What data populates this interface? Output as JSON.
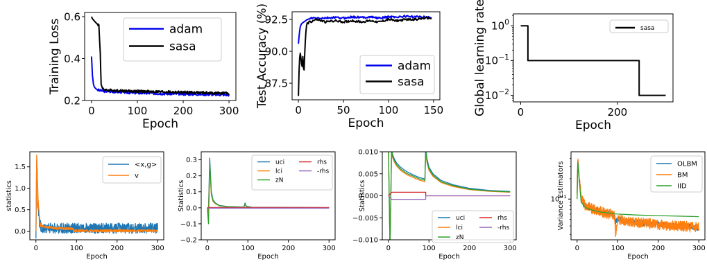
{
  "chart_data": [
    {
      "type": "line",
      "xlabel": "Epoch",
      "ylabel": "Training Loss",
      "xlim": [
        -15,
        315
      ],
      "ylim": [
        0.2,
        0.62
      ],
      "xticks": [
        0,
        100,
        200,
        300
      ],
      "yticks": [
        0.2,
        0.4,
        0.6
      ],
      "ytick_labels": [
        "0.2",
        "0.4",
        "0.6"
      ],
      "legend": "top-right",
      "series": [
        {
          "name": "adam",
          "color": "#0000ee",
          "x": [
            0,
            2,
            4,
            6,
            8,
            10,
            14,
            18,
            22,
            30,
            40,
            60,
            80,
            100,
            120,
            140,
            160,
            180,
            200,
            220,
            240,
            260,
            280,
            300
          ],
          "values": [
            0.41,
            0.32,
            0.28,
            0.265,
            0.26,
            0.255,
            0.25,
            0.248,
            0.246,
            0.244,
            0.243,
            0.241,
            0.238,
            0.236,
            0.235,
            0.234,
            0.233,
            0.232,
            0.231,
            0.23,
            0.23,
            0.229,
            0.228,
            0.227
          ]
        },
        {
          "name": "sasa",
          "color": "#000000",
          "x": [
            0,
            2,
            4,
            6,
            8,
            10,
            13,
            16,
            19,
            21,
            24,
            28,
            34,
            40,
            60,
            80,
            100,
            120,
            140,
            160,
            180,
            200,
            220,
            240,
            260,
            280,
            300
          ],
          "values": [
            0.6,
            0.59,
            0.585,
            0.58,
            0.575,
            0.57,
            0.565,
            0.56,
            0.43,
            0.28,
            0.255,
            0.252,
            0.25,
            0.249,
            0.247,
            0.245,
            0.244,
            0.243,
            0.242,
            0.241,
            0.24,
            0.239,
            0.238,
            0.237,
            0.236,
            0.235,
            0.234
          ]
        }
      ]
    },
    {
      "type": "line",
      "xlabel": "Epoch",
      "ylabel": "Test Accuracy (%)",
      "xlim": [
        -7,
        157
      ],
      "ylim": [
        86.2,
        93.1
      ],
      "xticks": [
        0,
        50,
        100,
        150
      ],
      "yticks": [
        87.5,
        90.0,
        92.5
      ],
      "ytick_labels": [
        "87.5",
        "90.0",
        "92.5"
      ],
      "legend": "bottom-right",
      "series": [
        {
          "name": "adam",
          "color": "#0000ee",
          "x": [
            0,
            1,
            2,
            3,
            4,
            6,
            8,
            10,
            15,
            20,
            30,
            40,
            50,
            60,
            70,
            80,
            90,
            100,
            110,
            120,
            130,
            140,
            148
          ],
          "values": [
            90.6,
            91.4,
            91.9,
            92.1,
            92.2,
            92.3,
            92.4,
            92.5,
            92.6,
            92.6,
            92.6,
            92.65,
            92.6,
            92.7,
            92.65,
            92.7,
            92.6,
            92.7,
            92.7,
            92.75,
            92.7,
            92.7,
            92.65
          ]
        },
        {
          "name": "sasa",
          "color": "#000000",
          "x": [
            0,
            1,
            2,
            3,
            4,
            5,
            6,
            7,
            8,
            9,
            10,
            11,
            12,
            14,
            16,
            20,
            30,
            40,
            50,
            60,
            70,
            80,
            90,
            100,
            110,
            120,
            130,
            140,
            148
          ],
          "values": [
            86.5,
            89.2,
            89.9,
            89.4,
            88.6,
            89.7,
            88.0,
            89.8,
            91.3,
            92.0,
            92.3,
            92.1,
            92.4,
            92.3,
            92.4,
            92.5,
            92.3,
            92.4,
            92.3,
            92.4,
            92.3,
            92.4,
            92.3,
            92.5,
            92.4,
            92.5,
            92.5,
            92.6,
            92.6
          ]
        }
      ]
    },
    {
      "type": "line",
      "xlabel": "Epoch",
      "ylabel": "Global learning rate",
      "yscale": "log",
      "xlim": [
        -15,
        315
      ],
      "ylim": [
        0.0065,
        2.2
      ],
      "xticks": [
        0,
        200
      ],
      "yticks": [
        1,
        0.1,
        0.01
      ],
      "ytick_labels": [
        "10^0",
        "10^-1",
        "10^-2"
      ],
      "legend": "top-right",
      "series": [
        {
          "name": "sasa",
          "color": "#000000",
          "x": [
            0,
            15,
            15,
            245,
            245,
            300
          ],
          "values": [
            1,
            1,
            0.1,
            0.1,
            0.01,
            0.01
          ]
        }
      ]
    },
    {
      "type": "line",
      "xlabel": "Epoch",
      "ylabel": "statistics",
      "xlim": [
        -15,
        315
      ],
      "ylim": [
        -0.2,
        1.85
      ],
      "xticks": [
        0,
        100,
        200,
        300
      ],
      "yticks": [
        0.0,
        0.5,
        1.0,
        1.5
      ],
      "ytick_labels": [
        "0.0",
        "0.5",
        "1.0",
        "1.5"
      ],
      "legend": "top-right",
      "series": [
        {
          "name": "<x,g>",
          "color": "#1f77b4",
          "x": [
            0,
            2,
            5,
            10,
            20,
            40,
            60,
            80,
            100,
            120,
            150,
            200,
            250,
            300
          ],
          "values": [
            -0.15,
            1.75,
            0.6,
            0.1,
            0.08,
            0.07,
            0.07,
            0.07,
            0.07,
            0.07,
            0.07,
            0.07,
            0.07,
            0.07
          ],
          "noise": 0.12
        },
        {
          "name": "v",
          "color": "#ff7f0e",
          "x": [
            0,
            2,
            5,
            10,
            20,
            40,
            60,
            80,
            92,
            95,
            100,
            150,
            200,
            250,
            300
          ],
          "values": [
            0.0,
            1.8,
            0.8,
            0.15,
            0.1,
            0.08,
            0.07,
            0.06,
            0.05,
            0.01,
            0.01,
            0.01,
            0.01,
            0.01,
            0.01
          ],
          "noise": 0.03
        }
      ]
    },
    {
      "type": "line",
      "xlabel": "Epoch",
      "ylabel": "Statistics",
      "xlim": [
        -15,
        315
      ],
      "ylim": [
        -0.2,
        0.35
      ],
      "xticks": [
        0,
        100,
        200,
        300
      ],
      "yticks": [
        -0.2,
        -0.1,
        0.0,
        0.1,
        0.2,
        0.3
      ],
      "ytick_labels": [
        "−0.2",
        "−0.1",
        "0.0",
        "0.1",
        "0.2",
        "0.3"
      ],
      "legend": "top-right",
      "series": [
        {
          "name": "uci",
          "color": "#1f77b4",
          "x": [
            0,
            3,
            6,
            8,
            10,
            14,
            20,
            30,
            50,
            90,
            93,
            96,
            110,
            300
          ],
          "values": [
            0.0,
            0.0,
            0.31,
            0.2,
            0.1,
            0.05,
            0.03,
            0.015,
            0.008,
            0.005,
            0.03,
            0.01,
            0.003,
            0.001
          ]
        },
        {
          "name": "lci",
          "color": "#ff7f0e",
          "x": [
            0,
            3,
            6,
            8,
            10,
            14,
            20,
            30,
            50,
            90,
            93,
            96,
            110,
            300
          ],
          "values": [
            0.0,
            -0.03,
            0.26,
            0.17,
            0.08,
            0.04,
            0.025,
            0.012,
            0.006,
            0.004,
            0.02,
            0.008,
            0.002,
            0.0
          ]
        },
        {
          "name": "zN",
          "color": "#2ca02c",
          "x": [
            0,
            3,
            6,
            8,
            10,
            14,
            20,
            30,
            50,
            90,
            93,
            96,
            110,
            300
          ],
          "values": [
            0.0,
            -0.1,
            0.28,
            0.18,
            0.09,
            0.045,
            0.028,
            0.013,
            0.007,
            0.004,
            0.025,
            0.009,
            0.0025,
            0.0005
          ]
        },
        {
          "name": "rhs",
          "color": "#d62728",
          "x": [
            0,
            300
          ],
          "values": [
            0.002,
            0.002
          ]
        },
        {
          "name": "-rhs",
          "color": "#9467bd",
          "x": [
            0,
            300
          ],
          "values": [
            -0.002,
            -0.002
          ]
        }
      ]
    },
    {
      "type": "line",
      "xlabel": "Epoch",
      "ylabel": "Statistics",
      "xlim": [
        -15,
        315
      ],
      "ylim": [
        -0.01,
        0.01
      ],
      "xticks": [
        0,
        100,
        200,
        300
      ],
      "yticks": [
        -0.01,
        -0.005,
        0.0,
        0.005,
        0.01
      ],
      "ytick_labels": [
        "−0.010",
        "−0.005",
        "0.000",
        "0.005",
        "0.010"
      ],
      "legend": "bottom-right",
      "series": [
        {
          "name": "uci",
          "color": "#1f77b4",
          "x": [
            0,
            4,
            8,
            10,
            14,
            20,
            30,
            45,
            60,
            75,
            90,
            92,
            95,
            100,
            110,
            130,
            160,
            200,
            250,
            300
          ],
          "values": [
            0.012,
            -0.012,
            0.012,
            0.0095,
            0.0085,
            0.0075,
            0.0065,
            0.0055,
            0.0048,
            0.0042,
            0.0038,
            0.011,
            0.0085,
            0.0065,
            0.005,
            0.0035,
            0.0025,
            0.0017,
            0.0012,
            0.001
          ]
        },
        {
          "name": "lci",
          "color": "#ff7f0e",
          "x": [
            0,
            4,
            8,
            10,
            14,
            20,
            30,
            45,
            60,
            75,
            90,
            92,
            95,
            100,
            110,
            130,
            160,
            200,
            250,
            300
          ],
          "values": [
            0.011,
            -0.012,
            0.011,
            0.0088,
            0.0078,
            0.0068,
            0.0058,
            0.0048,
            0.0042,
            0.0036,
            0.0032,
            0.01,
            0.0076,
            0.0058,
            0.0044,
            0.003,
            0.0021,
            0.0014,
            0.001,
            0.0008
          ]
        },
        {
          "name": "zN",
          "color": "#2ca02c",
          "x": [
            0,
            4,
            8,
            10,
            14,
            20,
            30,
            45,
            60,
            75,
            90,
            92,
            95,
            100,
            110,
            130,
            160,
            200,
            250,
            300
          ],
          "values": [
            0.0115,
            -0.012,
            0.0115,
            0.0091,
            0.0081,
            0.0071,
            0.0061,
            0.0051,
            0.0045,
            0.0039,
            0.0035,
            0.0105,
            0.008,
            0.0061,
            0.0047,
            0.0032,
            0.0023,
            0.0015,
            0.0011,
            0.0009
          ]
        },
        {
          "name": "rhs",
          "color": "#d62728",
          "x": [
            0,
            8,
            8,
            92,
            92,
            300
          ],
          "values": [
            0.0,
            0.0008,
            0.0008,
            0.0008,
            0.0,
            0.0
          ]
        },
        {
          "name": "-rhs",
          "color": "#9467bd",
          "x": [
            0,
            8,
            8,
            92,
            92,
            300
          ],
          "values": [
            0.0,
            -0.0008,
            -0.0008,
            -0.0008,
            0.0,
            0.0
          ]
        }
      ]
    },
    {
      "type": "line",
      "xlabel": "Epoch",
      "ylabel": "Variance Estimators",
      "yscale": "log",
      "xlim": [
        -15,
        315
      ],
      "ylim": [
        0.025,
        0.5
      ],
      "xticks": [
        0,
        100,
        200,
        300
      ],
      "yticks": [
        0.1
      ],
      "ytick_labels": [
        "10^-1"
      ],
      "legend": "top-right",
      "series": [
        {
          "name": "OLBM",
          "color": "#1f77b4",
          "x": [
            0,
            2,
            5,
            10,
            20,
            40,
            60,
            80,
            92,
            95,
            100,
            150,
            200,
            250,
            300
          ],
          "values": [
            0.12,
            0.4,
            0.2,
            0.1,
            0.08,
            0.07,
            0.065,
            0.06,
            0.058,
            0.045,
            0.05,
            0.045,
            0.042,
            0.04,
            0.038
          ],
          "noise": 0.1
        },
        {
          "name": "BM",
          "color": "#ff7f0e",
          "x": [
            0,
            2,
            5,
            10,
            20,
            40,
            60,
            80,
            92,
            95,
            100,
            150,
            200,
            250,
            300
          ],
          "values": [
            0.12,
            0.42,
            0.22,
            0.1,
            0.08,
            0.07,
            0.065,
            0.06,
            0.058,
            0.03,
            0.05,
            0.045,
            0.042,
            0.04,
            0.038
          ],
          "noise": 0.18
        },
        {
          "name": "IID",
          "color": "#2ca02c",
          "x": [
            0,
            2,
            5,
            10,
            20,
            40,
            60,
            80,
            100,
            150,
            200,
            250,
            300
          ],
          "values": [
            0.1,
            0.35,
            0.2,
            0.09,
            0.075,
            0.068,
            0.064,
            0.062,
            0.06,
            0.058,
            0.057,
            0.056,
            0.055
          ],
          "noise": 0.0
        }
      ]
    }
  ]
}
